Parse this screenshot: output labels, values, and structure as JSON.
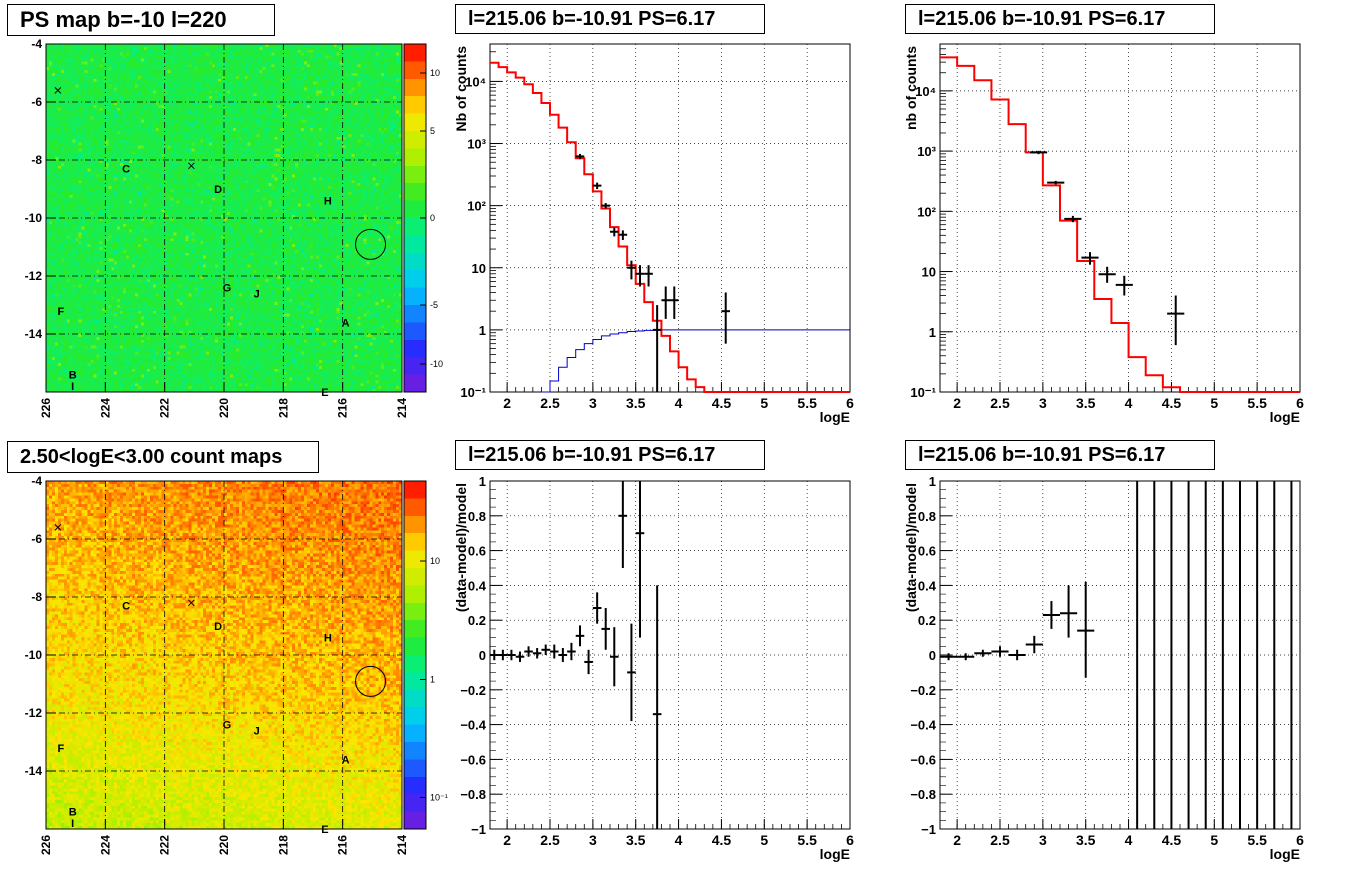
{
  "colors": {
    "data": "#000000",
    "model": "#ff0000",
    "blue_curve": "#0000cc",
    "grid": "#000000"
  },
  "panels": {
    "ps_map": {
      "title": "PS map b=-10 l=220"
    },
    "count_map": {
      "title": "2.50<logE<3.00 count maps"
    },
    "spec_left": {
      "title": "l=215.06 b=-10.91 PS=6.17"
    },
    "spec_right": {
      "title": "l=215.06 b=-10.91 PS=6.17"
    },
    "res_left": {
      "title": "l=215.06 b=-10.91 PS=6.17"
    },
    "res_right": {
      "title": "l=215.06 b=-10.91 PS=6.17"
    }
  },
  "chart_data": [
    {
      "id": "ps_map",
      "type": "heatmap",
      "title": "PS map b=-10 l=220",
      "xlim": [
        226,
        214
      ],
      "ylim": [
        -16,
        -4
      ],
      "x_ticks": [
        "226",
        "224",
        "222",
        "220",
        "218",
        "216",
        "214"
      ],
      "y_ticks": [
        "-4",
        "-6",
        "-8",
        "-10",
        "-12",
        "-14"
      ],
      "colorbar_ticks": [
        "10",
        "5",
        "0",
        "-5",
        "-10"
      ],
      "colorbar_range": [
        -15,
        15
      ],
      "source_labels": [
        {
          "text": "C",
          "l": 223.3,
          "b": -8.3
        },
        {
          "text": "D",
          "l": 220.2,
          "b": -9.0
        },
        {
          "text": "H",
          "l": 216.5,
          "b": -9.4
        },
        {
          "text": "G",
          "l": 219.9,
          "b": -12.4
        },
        {
          "text": "J",
          "l": 218.9,
          "b": -12.6
        },
        {
          "text": "F",
          "l": 225.5,
          "b": -13.2
        },
        {
          "text": "A",
          "l": 215.9,
          "b": -13.6
        },
        {
          "text": "B",
          "l": 225.1,
          "b": -15.4
        },
        {
          "text": "I",
          "l": 225.1,
          "b": -15.8
        },
        {
          "text": "E",
          "l": 216.6,
          "b": -16.0
        }
      ],
      "cross_markers": [
        {
          "l": 225.6,
          "b": -5.6
        },
        {
          "l": 221.1,
          "b": -8.2
        }
      ],
      "circle": {
        "l": 215.06,
        "b": -10.91
      }
    },
    {
      "id": "count_map",
      "type": "heatmap",
      "title": "2.50<logE<3.00 count maps",
      "xlim": [
        226,
        214
      ],
      "ylim": [
        -16,
        -4
      ],
      "x_ticks": [
        "226",
        "224",
        "222",
        "220",
        "218",
        "216",
        "214"
      ],
      "y_ticks": [
        "-4",
        "-6",
        "-8",
        "-10",
        "-12",
        "-14"
      ],
      "colorbar_ticks": [
        "10",
        "1",
        "10⁻¹"
      ],
      "colorbar_scale": "log",
      "source_labels": [
        {
          "text": "C",
          "l": 223.3,
          "b": -8.3
        },
        {
          "text": "D",
          "l": 220.2,
          "b": -9.0
        },
        {
          "text": "H",
          "l": 216.5,
          "b": -9.4
        },
        {
          "text": "G",
          "l": 219.9,
          "b": -12.4
        },
        {
          "text": "J",
          "l": 218.9,
          "b": -12.6
        },
        {
          "text": "F",
          "l": 225.5,
          "b": -13.2
        },
        {
          "text": "A",
          "l": 215.9,
          "b": -13.6
        },
        {
          "text": "B",
          "l": 225.1,
          "b": -15.4
        },
        {
          "text": "I",
          "l": 225.1,
          "b": -15.8
        },
        {
          "text": "E",
          "l": 216.6,
          "b": -16.0
        }
      ],
      "cross_markers": [
        {
          "l": 225.6,
          "b": -5.6
        },
        {
          "l": 221.1,
          "b": -8.2
        }
      ],
      "circle": {
        "l": 215.06,
        "b": -10.91
      }
    },
    {
      "id": "spec_left",
      "type": "line",
      "title": "l=215.06 b=-10.91 PS=6.17",
      "xlabel": "logE",
      "ylabel": "Nb of counts",
      "xlim": [
        1.8,
        6
      ],
      "ylim": [
        0.1,
        40000
      ],
      "yscale": "log",
      "grid": true,
      "x_ticks": [
        "2",
        "2.5",
        "3",
        "3.5",
        "4",
        "4.5",
        "5",
        "5.5",
        "6"
      ],
      "y_ticks": [
        "10⁻¹",
        "1",
        "10",
        "10²",
        "10³",
        "10⁴"
      ],
      "model_steps": [
        {
          "x0": 1.8,
          "x1": 1.9,
          "y": 20000
        },
        {
          "x0": 1.9,
          "x1": 2.0,
          "y": 17000
        },
        {
          "x0": 2.0,
          "x1": 2.1,
          "y": 14000
        },
        {
          "x0": 2.1,
          "x1": 2.2,
          "y": 11500
        },
        {
          "x0": 2.2,
          "x1": 2.3,
          "y": 9000
        },
        {
          "x0": 2.3,
          "x1": 2.4,
          "y": 6500
        },
        {
          "x0": 2.4,
          "x1": 2.5,
          "y": 4500
        },
        {
          "x0": 2.5,
          "x1": 2.6,
          "y": 2900
        },
        {
          "x0": 2.6,
          "x1": 2.7,
          "y": 1800
        },
        {
          "x0": 2.7,
          "x1": 2.8,
          "y": 1050
        },
        {
          "x0": 2.8,
          "x1": 2.9,
          "y": 580
        },
        {
          "x0": 2.9,
          "x1": 3.0,
          "y": 320
        },
        {
          "x0": 3.0,
          "x1": 3.1,
          "y": 170
        },
        {
          "x0": 3.1,
          "x1": 3.2,
          "y": 90
        },
        {
          "x0": 3.2,
          "x1": 3.3,
          "y": 45
        },
        {
          "x0": 3.3,
          "x1": 3.4,
          "y": 22
        },
        {
          "x0": 3.4,
          "x1": 3.5,
          "y": 11
        },
        {
          "x0": 3.5,
          "x1": 3.6,
          "y": 5.5
        },
        {
          "x0": 3.6,
          "x1": 3.7,
          "y": 2.8
        },
        {
          "x0": 3.7,
          "x1": 3.8,
          "y": 1.4
        },
        {
          "x0": 3.8,
          "x1": 3.9,
          "y": 0.8
        },
        {
          "x0": 3.9,
          "x1": 4.0,
          "y": 0.45
        },
        {
          "x0": 4.0,
          "x1": 4.1,
          "y": 0.25
        },
        {
          "x0": 4.1,
          "x1": 4.2,
          "y": 0.16
        },
        {
          "x0": 4.2,
          "x1": 4.3,
          "y": 0.12
        },
        {
          "x0": 4.3,
          "x1": 6.0,
          "y": 0.1
        }
      ],
      "blue_steps": [
        {
          "x0": 2.4,
          "x1": 2.5,
          "y": 0.1
        },
        {
          "x0": 2.5,
          "x1": 2.6,
          "y": 0.15
        },
        {
          "x0": 2.6,
          "x1": 2.7,
          "y": 0.25
        },
        {
          "x0": 2.7,
          "x1": 2.8,
          "y": 0.36
        },
        {
          "x0": 2.8,
          "x1": 2.9,
          "y": 0.48
        },
        {
          "x0": 2.9,
          "x1": 3.0,
          "y": 0.6
        },
        {
          "x0": 3.0,
          "x1": 3.1,
          "y": 0.7
        },
        {
          "x0": 3.1,
          "x1": 3.2,
          "y": 0.8
        },
        {
          "x0": 3.2,
          "x1": 3.3,
          "y": 0.86
        },
        {
          "x0": 3.3,
          "x1": 3.4,
          "y": 0.9
        },
        {
          "x0": 3.4,
          "x1": 3.5,
          "y": 0.94
        },
        {
          "x0": 3.5,
          "x1": 3.6,
          "y": 0.96
        },
        {
          "x0": 3.6,
          "x1": 3.7,
          "y": 0.98
        },
        {
          "x0": 3.7,
          "x1": 3.8,
          "y": 0.99
        },
        {
          "x0": 3.8,
          "x1": 6.0,
          "y": 1.0
        }
      ],
      "data_points": [
        {
          "x": 2.85,
          "y": 620,
          "xerr": 0.05,
          "ylo": 560,
          "yhi": 680
        },
        {
          "x": 3.05,
          "y": 210,
          "xerr": 0.05,
          "ylo": 185,
          "yhi": 235
        },
        {
          "x": 3.15,
          "y": 100,
          "xerr": 0.05,
          "ylo": 90,
          "yhi": 110
        },
        {
          "x": 3.25,
          "y": 38,
          "xerr": 0.05,
          "ylo": 32,
          "yhi": 44
        },
        {
          "x": 3.35,
          "y": 34,
          "xerr": 0.05,
          "ylo": 28,
          "yhi": 40
        },
        {
          "x": 3.45,
          "y": 10,
          "xerr": 0.05,
          "ylo": 6.5,
          "yhi": 13
        },
        {
          "x": 3.55,
          "y": 8,
          "xerr": 0.05,
          "ylo": 5,
          "yhi": 11
        },
        {
          "x": 3.65,
          "y": 8,
          "xerr": 0.05,
          "ylo": 5,
          "yhi": 11
        },
        {
          "x": 3.75,
          "y": 1,
          "xerr": 0.05,
          "ylo": 0.1,
          "yhi": 2.5
        },
        {
          "x": 3.85,
          "y": 3,
          "xerr": 0.05,
          "ylo": 1.5,
          "yhi": 5
        },
        {
          "x": 3.95,
          "y": 3,
          "xerr": 0.05,
          "ylo": 1.5,
          "yhi": 5
        },
        {
          "x": 4.55,
          "y": 2,
          "xerr": 0.05,
          "ylo": 0.6,
          "yhi": 4
        }
      ]
    },
    {
      "id": "spec_right",
      "type": "line",
      "title": "l=215.06 b=-10.91 PS=6.17",
      "xlabel": "logE",
      "ylabel": "nb of counts",
      "xlim": [
        1.8,
        6
      ],
      "ylim": [
        0.1,
        60000
      ],
      "yscale": "log",
      "grid": true,
      "x_ticks": [
        "2",
        "2.5",
        "3",
        "3.5",
        "4",
        "4.5",
        "5",
        "5.5",
        "6"
      ],
      "y_ticks": [
        "10⁻¹",
        "1",
        "10",
        "10²",
        "10³",
        "10⁴"
      ],
      "model_steps": [
        {
          "x0": 1.8,
          "x1": 2.0,
          "y": 36000
        },
        {
          "x0": 2.0,
          "x1": 2.2,
          "y": 26000
        },
        {
          "x0": 2.2,
          "x1": 2.4,
          "y": 15000
        },
        {
          "x0": 2.4,
          "x1": 2.6,
          "y": 7200
        },
        {
          "x0": 2.6,
          "x1": 2.8,
          "y": 2800
        },
        {
          "x0": 2.8,
          "x1": 3.0,
          "y": 950
        },
        {
          "x0": 3.0,
          "x1": 3.2,
          "y": 270
        },
        {
          "x0": 3.2,
          "x1": 3.4,
          "y": 70
        },
        {
          "x0": 3.4,
          "x1": 3.6,
          "y": 15
        },
        {
          "x0": 3.6,
          "x1": 3.8,
          "y": 3.5
        },
        {
          "x0": 3.8,
          "x1": 4.0,
          "y": 1.4
        },
        {
          "x0": 4.0,
          "x1": 4.2,
          "y": 0.38
        },
        {
          "x0": 4.2,
          "x1": 4.4,
          "y": 0.19
        },
        {
          "x0": 4.4,
          "x1": 4.6,
          "y": 0.12
        },
        {
          "x0": 4.6,
          "x1": 6.0,
          "y": 0.1
        }
      ],
      "data_points": [
        {
          "x": 2.95,
          "y": 950,
          "xerr": 0.1,
          "ylo": 890,
          "yhi": 1010
        },
        {
          "x": 3.15,
          "y": 300,
          "xerr": 0.1,
          "ylo": 280,
          "yhi": 320
        },
        {
          "x": 3.35,
          "y": 75,
          "xerr": 0.1,
          "ylo": 66,
          "yhi": 84
        },
        {
          "x": 3.55,
          "y": 17,
          "xerr": 0.1,
          "ylo": 13,
          "yhi": 21
        },
        {
          "x": 3.75,
          "y": 9,
          "xerr": 0.1,
          "ylo": 6.5,
          "yhi": 12
        },
        {
          "x": 3.95,
          "y": 6,
          "xerr": 0.1,
          "ylo": 4,
          "yhi": 8.5
        },
        {
          "x": 4.55,
          "y": 2,
          "xerr": 0.1,
          "ylo": 0.6,
          "yhi": 4
        }
      ]
    },
    {
      "id": "res_left",
      "type": "scatter",
      "title": "l=215.06 b=-10.91 PS=6.17",
      "xlabel": "logE",
      "ylabel": "(data-model)/model",
      "xlim": [
        1.8,
        6
      ],
      "ylim": [
        -1,
        1
      ],
      "grid": true,
      "x_ticks": [
        "2",
        "2.5",
        "3",
        "3.5",
        "4",
        "4.5",
        "5",
        "5.5",
        "6"
      ],
      "y_ticks": [
        "−1",
        "−0.8",
        "−0.6",
        "−0.4",
        "−0.2",
        "0",
        "0.2",
        "0.4",
        "0.6",
        "0.8",
        "1"
      ],
      "data_points": [
        {
          "x": 1.85,
          "y": 0.0,
          "xerr": 0.05,
          "ylo": -0.03,
          "yhi": 0.03
        },
        {
          "x": 1.95,
          "y": 0.0,
          "xerr": 0.05,
          "ylo": -0.03,
          "yhi": 0.03
        },
        {
          "x": 2.05,
          "y": 0.0,
          "xerr": 0.05,
          "ylo": -0.03,
          "yhi": 0.03
        },
        {
          "x": 2.15,
          "y": -0.01,
          "xerr": 0.05,
          "ylo": -0.04,
          "yhi": 0.02
        },
        {
          "x": 2.25,
          "y": 0.02,
          "xerr": 0.05,
          "ylo": -0.01,
          "yhi": 0.05
        },
        {
          "x": 2.35,
          "y": 0.01,
          "xerr": 0.05,
          "ylo": -0.02,
          "yhi": 0.04
        },
        {
          "x": 2.45,
          "y": 0.03,
          "xerr": 0.05,
          "ylo": 0.0,
          "yhi": 0.06
        },
        {
          "x": 2.55,
          "y": 0.02,
          "xerr": 0.05,
          "ylo": -0.02,
          "yhi": 0.06
        },
        {
          "x": 2.65,
          "y": 0.0,
          "xerr": 0.05,
          "ylo": -0.04,
          "yhi": 0.04
        },
        {
          "x": 2.75,
          "y": 0.02,
          "xerr": 0.05,
          "ylo": -0.03,
          "yhi": 0.07
        },
        {
          "x": 2.85,
          "y": 0.11,
          "xerr": 0.05,
          "ylo": 0.05,
          "yhi": 0.17
        },
        {
          "x": 2.95,
          "y": -0.04,
          "xerr": 0.05,
          "ylo": -0.11,
          "yhi": 0.03
        },
        {
          "x": 3.05,
          "y": 0.27,
          "xerr": 0.05,
          "ylo": 0.18,
          "yhi": 0.36
        },
        {
          "x": 3.15,
          "y": 0.15,
          "xerr": 0.05,
          "ylo": 0.03,
          "yhi": 0.27
        },
        {
          "x": 3.25,
          "y": -0.01,
          "xerr": 0.05,
          "ylo": -0.18,
          "yhi": 0.16
        },
        {
          "x": 3.35,
          "y": 0.8,
          "xerr": 0.05,
          "ylo": 0.5,
          "yhi": 1.1
        },
        {
          "x": 3.45,
          "y": -0.1,
          "xerr": 0.05,
          "ylo": -0.38,
          "yhi": 0.18
        },
        {
          "x": 3.55,
          "y": 0.7,
          "xerr": 0.05,
          "ylo": 0.1,
          "yhi": 1.3
        },
        {
          "x": 3.75,
          "y": -0.34,
          "xerr": 0.05,
          "ylo": -1.0,
          "yhi": 0.4
        }
      ]
    },
    {
      "id": "res_right",
      "type": "scatter",
      "title": "l=215.06 b=-10.91 PS=6.17",
      "xlabel": "logE",
      "ylabel": "(data-model)/model",
      "xlim": [
        1.8,
        6
      ],
      "ylim": [
        -1,
        1
      ],
      "grid": true,
      "x_ticks": [
        "2",
        "2.5",
        "3",
        "3.5",
        "4",
        "4.5",
        "5",
        "5.5",
        "6"
      ],
      "y_ticks": [
        "−1",
        "−0.8",
        "−0.6",
        "−0.4",
        "−0.2",
        "0",
        "0.2",
        "0.4",
        "0.6",
        "0.8",
        "1"
      ],
      "data_points": [
        {
          "x": 1.9,
          "y": -0.01,
          "xerr": 0.1,
          "ylo": -0.03,
          "yhi": 0.01
        },
        {
          "x": 2.1,
          "y": -0.01,
          "xerr": 0.1,
          "ylo": -0.03,
          "yhi": 0.01
        },
        {
          "x": 2.3,
          "y": 0.01,
          "xerr": 0.1,
          "ylo": -0.01,
          "yhi": 0.03
        },
        {
          "x": 2.5,
          "y": 0.02,
          "xerr": 0.1,
          "ylo": -0.01,
          "yhi": 0.05
        },
        {
          "x": 2.7,
          "y": 0.0,
          "xerr": 0.1,
          "ylo": -0.03,
          "yhi": 0.03
        },
        {
          "x": 2.9,
          "y": 0.06,
          "xerr": 0.1,
          "ylo": 0.01,
          "yhi": 0.11
        },
        {
          "x": 3.1,
          "y": 0.23,
          "xerr": 0.1,
          "ylo": 0.15,
          "yhi": 0.31
        },
        {
          "x": 3.3,
          "y": 0.24,
          "xerr": 0.1,
          "ylo": 0.1,
          "yhi": 0.4
        },
        {
          "x": 3.5,
          "y": 0.14,
          "xerr": 0.1,
          "ylo": -0.13,
          "yhi": 0.42
        }
      ],
      "vertical_lines_x": [
        4.1,
        4.3,
        4.5,
        4.7,
        4.9,
        5.1,
        5.3,
        5.5,
        5.7,
        5.9
      ]
    }
  ]
}
